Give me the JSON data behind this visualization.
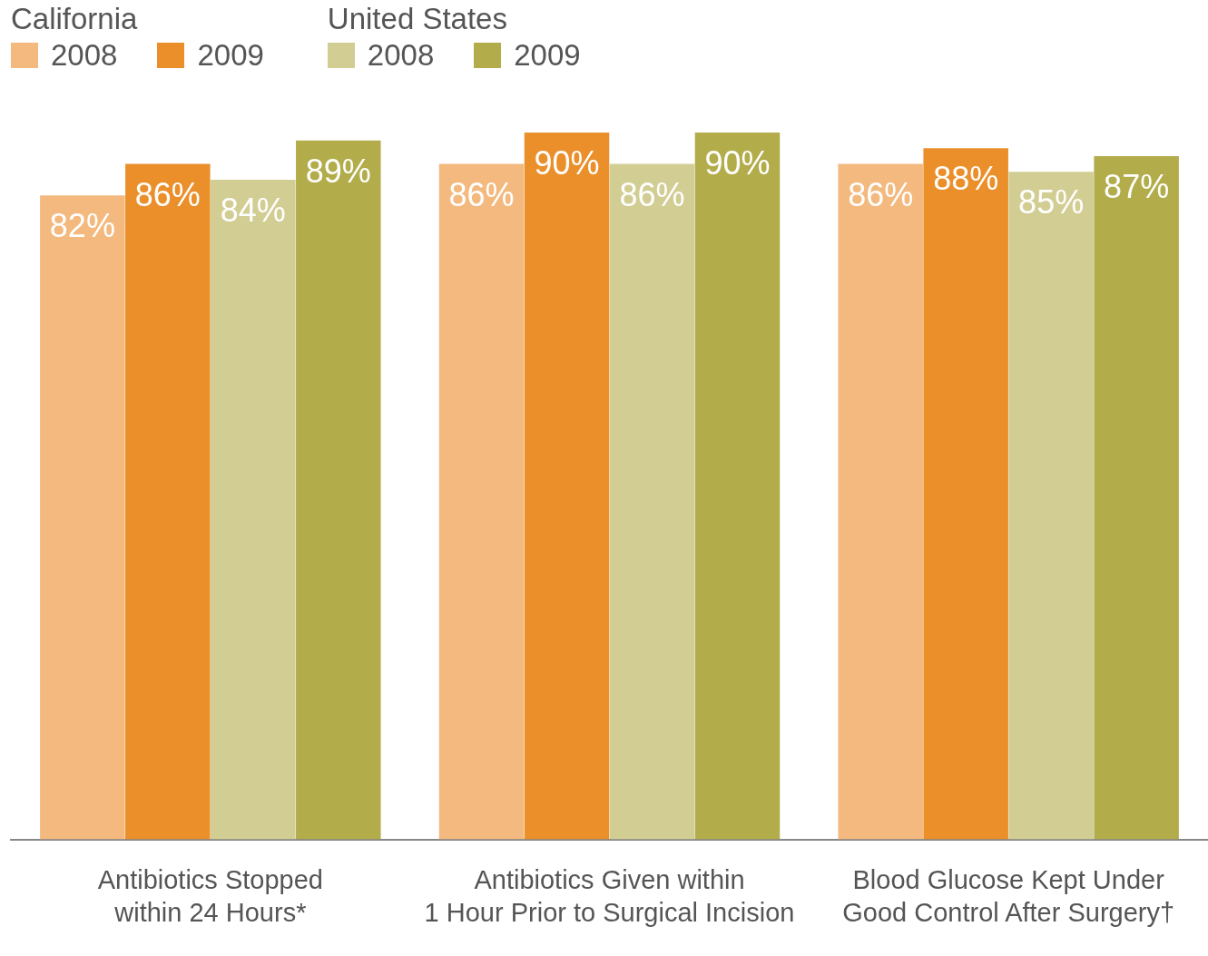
{
  "chart_data": {
    "type": "bar",
    "categories": [
      "Antibiotics Stopped\nwithin 24 Hours*",
      "Antibiotics Given within\n1 Hour Prior to Surgical Incision",
      "Blood Glucose Kept Under\nGood Control After Surgery†"
    ],
    "series": [
      {
        "name": "2008",
        "color": "#f3b97e",
        "values": [
          82,
          86,
          86
        ],
        "value_labels": [
          "82%",
          "86%",
          "86%"
        ]
      },
      {
        "name": "2009",
        "color": "#ea8f2a",
        "values": [
          86,
          90,
          88
        ],
        "value_labels": [
          "86%",
          "90%",
          "88%"
        ]
      },
      {
        "name": "2008",
        "color": "#d2cd93",
        "values": [
          84,
          86,
          85
        ],
        "value_labels": [
          "84%",
          "86%",
          "85%"
        ]
      },
      {
        "name": "2009",
        "color": "#b2ac4b",
        "values": [
          89,
          90,
          87
        ],
        "value_labels": [
          "89%",
          "90%",
          "87%"
        ]
      }
    ],
    "annotations": [
      "California",
      "United States"
    ],
    "tick_labels": "x",
    "grid": false,
    "legend": "top left"
  }
}
